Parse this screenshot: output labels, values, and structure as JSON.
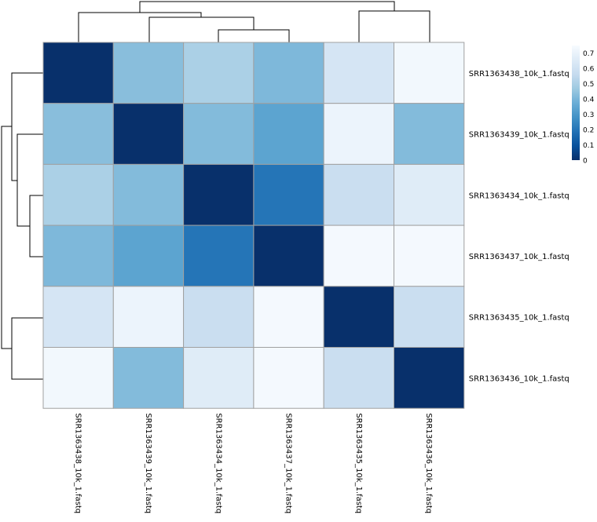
{
  "chart_data": {
    "type": "heatmap",
    "rows": [
      "SRR1363438_10k_1.fastq",
      "SRR1363439_10k_1.fastq",
      "SRR1363434_10k_1.fastq",
      "SRR1363437_10k_1.fastq",
      "SRR1363435_10k_1.fastq",
      "SRR1363436_10k_1.fastq"
    ],
    "columns": [
      "SRR1363438_10k_1.fastq",
      "SRR1363439_10k_1.fastq",
      "SRR1363434_10k_1.fastq",
      "SRR1363437_10k_1.fastq",
      "SRR1363435_10k_1.fastq",
      "SRR1363436_10k_1.fastq"
    ],
    "values": [
      [
        0.0,
        0.43,
        0.5,
        0.41,
        0.62,
        0.73
      ],
      [
        0.43,
        0.0,
        0.42,
        0.34,
        0.71,
        0.42
      ],
      [
        0.5,
        0.42,
        0.0,
        0.2,
        0.58,
        0.66
      ],
      [
        0.41,
        0.34,
        0.2,
        0.0,
        0.74,
        0.74
      ],
      [
        0.62,
        0.71,
        0.58,
        0.74,
        0.0,
        0.58
      ],
      [
        0.73,
        0.42,
        0.66,
        0.74,
        0.58,
        0.0
      ]
    ],
    "color_scale": {
      "min": 0,
      "max": 0.75,
      "colors": [
        "#08306b",
        "#08519c",
        "#2171b5",
        "#4292c6",
        "#6baed6",
        "#9ecae1",
        "#c6dbef",
        "#deebf7",
        "#f7fbff"
      ]
    },
    "legend": {
      "ticks": [
        0,
        0.1,
        0.2,
        0.3,
        0.4,
        0.5,
        0.6,
        0.7
      ],
      "tick_labels": [
        "0",
        "0.1",
        "0.2",
        "0.3",
        "0.4",
        "0.5",
        "0.6",
        "0.7"
      ],
      "placement": "right"
    },
    "cell_border_color": "#a0a0a0",
    "dendrogram": {
      "columns": "top",
      "rows": "left"
    }
  }
}
